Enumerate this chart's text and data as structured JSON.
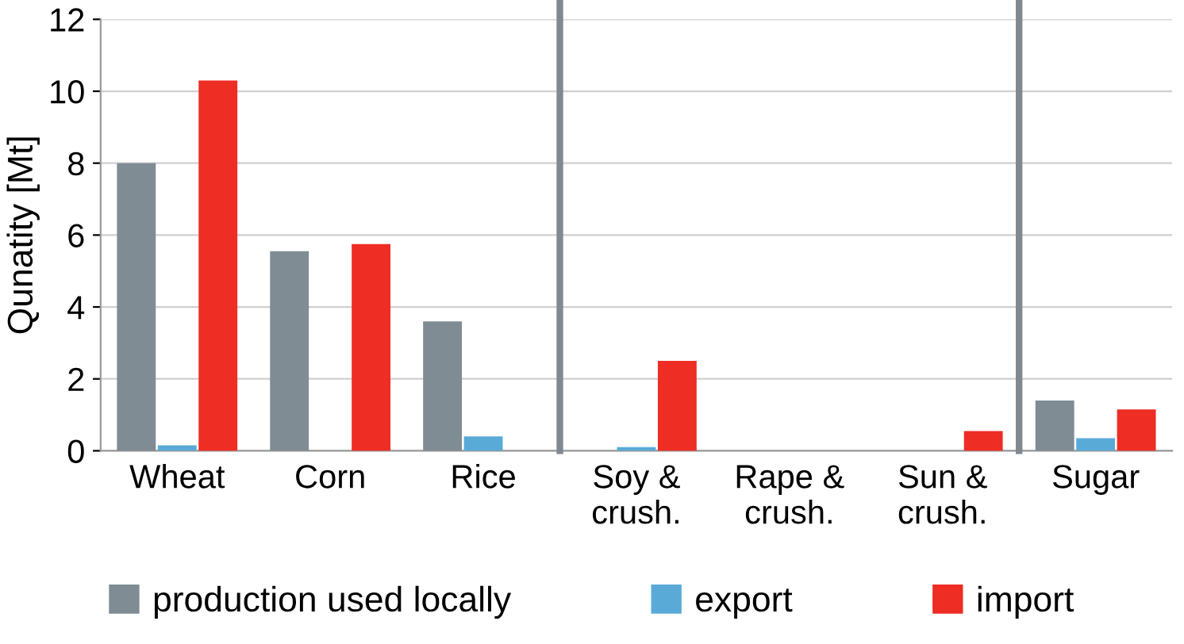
{
  "chart_data": {
    "type": "bar",
    "ylabel": "Qunatity [Mt]",
    "categories": [
      "Wheat",
      "Corn",
      "Rice",
      "Soy &\ncrush.",
      "Rape &\ncrush.",
      "Sun &\ncrush.",
      "Sugar"
    ],
    "series": [
      {
        "name": "production used locally",
        "color": "#7f8c93",
        "values": [
          8.0,
          5.55,
          3.6,
          0,
          0,
          0,
          1.4
        ]
      },
      {
        "name": "export",
        "color": "#5aaad8",
        "values": [
          0.15,
          0,
          0.4,
          0.1,
          0,
          0,
          0.35
        ]
      },
      {
        "name": "import",
        "color": "#ee2d24",
        "values": [
          10.3,
          5.75,
          0,
          2.5,
          0,
          0.55,
          1.15
        ]
      }
    ],
    "ylim": [
      0,
      12
    ],
    "yticks": [
      0,
      2,
      4,
      6,
      8,
      10,
      12
    ],
    "grid": "y",
    "legend": "bottom"
  }
}
